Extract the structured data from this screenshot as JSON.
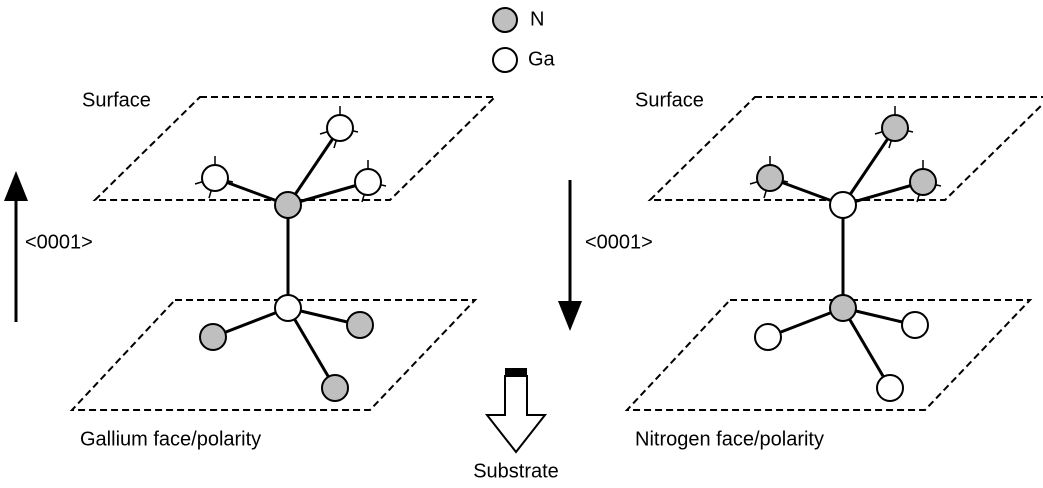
{
  "legend": [
    {
      "label": "N"
    },
    {
      "label": "Ga"
    }
  ],
  "panels": [
    {
      "surface": "Surface",
      "direction": "<0001>",
      "caption": "Gallium face/polarity"
    },
    {
      "surface": "Surface",
      "direction": "<0001>",
      "caption": "Nitrogen face/polarity"
    }
  ],
  "substrate": "Substrate"
}
